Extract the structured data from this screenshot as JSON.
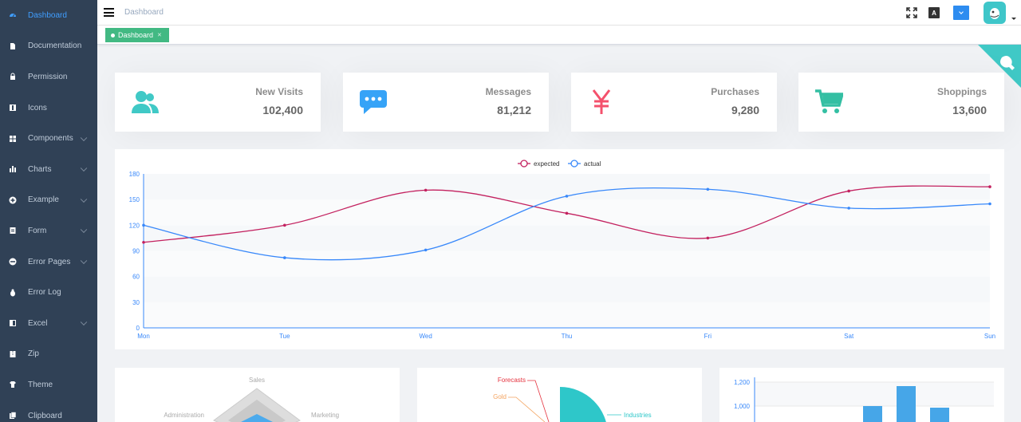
{
  "sidebar": {
    "items": [
      {
        "label": "Dashboard",
        "icon": "dashboard-icon",
        "active": true,
        "caret": false
      },
      {
        "label": "Documentation",
        "icon": "documentation-icon",
        "active": false,
        "caret": false
      },
      {
        "label": "Permission",
        "icon": "lock-icon",
        "active": false,
        "caret": false
      },
      {
        "label": "Icons",
        "icon": "icons-icon",
        "active": false,
        "caret": false
      },
      {
        "label": "Components",
        "icon": "component-icon",
        "active": false,
        "caret": true
      },
      {
        "label": "Charts",
        "icon": "chart-icon",
        "active": false,
        "caret": true
      },
      {
        "label": "Example",
        "icon": "example-icon",
        "active": false,
        "caret": true
      },
      {
        "label": "Form",
        "icon": "form-icon",
        "active": false,
        "caret": true
      },
      {
        "label": "Error Pages",
        "icon": "error-pages-icon",
        "active": false,
        "caret": true
      },
      {
        "label": "Error Log",
        "icon": "bug-icon",
        "active": false,
        "caret": false
      },
      {
        "label": "Excel",
        "icon": "excel-icon",
        "active": false,
        "caret": true
      },
      {
        "label": "Zip",
        "icon": "zip-icon",
        "active": false,
        "caret": false
      },
      {
        "label": "Theme",
        "icon": "theme-icon",
        "active": false,
        "caret": false
      },
      {
        "label": "Clipboard",
        "icon": "clipboard-icon",
        "active": false,
        "caret": false
      }
    ]
  },
  "navbar": {
    "breadcrumb": "Dashboard",
    "lang_icon_text": "A"
  },
  "tags": {
    "active_tag": "Dashboard"
  },
  "panels": [
    {
      "label": "New Visits",
      "value": "102,400",
      "icon": "peoples-icon",
      "color": "#40c9c6"
    },
    {
      "label": "Messages",
      "value": "81,212",
      "icon": "message-icon",
      "color": "#36a3f7"
    },
    {
      "label": "Purchases",
      "value": "9,280",
      "icon": "money-icon",
      "color": "#f4516c"
    },
    {
      "label": "Shoppings",
      "value": "13,600",
      "icon": "shopping-cart-icon",
      "color": "#34bfa3"
    }
  ],
  "colors": {
    "sidebar_bg": "#304156",
    "accent": "#409eff",
    "expected": "#c3215f",
    "actual": "#3888fa"
  },
  "chart_data": [
    {
      "type": "line",
      "categories": [
        "Mon",
        "Tue",
        "Wed",
        "Thu",
        "Fri",
        "Sat",
        "Sun"
      ],
      "series": [
        {
          "name": "expected",
          "values": [
            100,
            120,
            161,
            134,
            105,
            160,
            165
          ]
        },
        {
          "name": "actual",
          "values": [
            120,
            82,
            91,
            154,
            162,
            140,
            145
          ]
        }
      ],
      "yticks": [
        "0",
        "30",
        "60",
        "90",
        "120",
        "150",
        "180"
      ],
      "ylim": [
        0,
        180
      ],
      "legend": "top-center"
    },
    {
      "type": "radar",
      "indicators": [
        "Sales",
        "Administration",
        "Marketing"
      ]
    },
    {
      "type": "pie",
      "labels": [
        "Forecasts",
        "Gold",
        "Industries"
      ]
    },
    {
      "type": "bar",
      "yticks": [
        "1,200",
        "1,000"
      ]
    }
  ]
}
